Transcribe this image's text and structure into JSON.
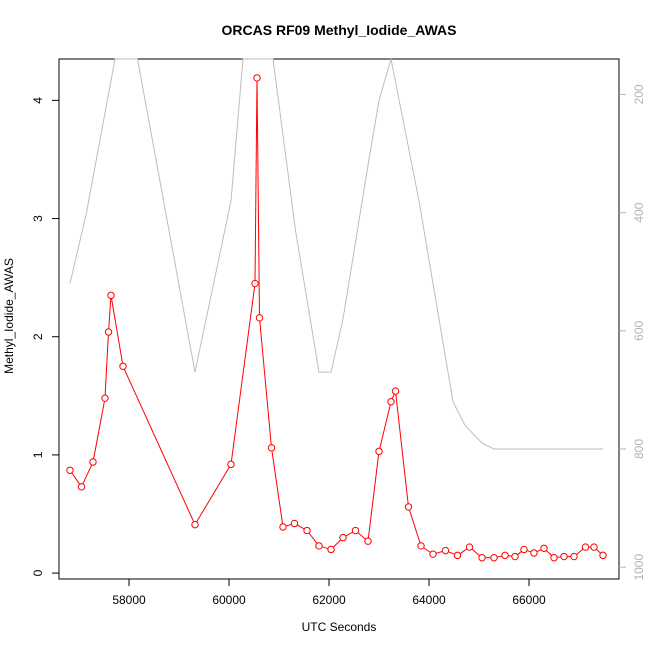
{
  "chart_data": {
    "type": "line",
    "title": "ORCAS RF09 Methyl_Iodide_AWAS",
    "xlabel": "UTC Seconds",
    "ylabel": "Methyl_Iodide_AWAS",
    "xlim": [
      56600,
      67800
    ],
    "ylim": [
      -0.05,
      4.35
    ],
    "x_ticks": [
      58000,
      60000,
      62000,
      64000,
      66000
    ],
    "y_ticks": [
      0,
      1,
      2,
      3,
      4
    ],
    "right_axis": {
      "lim": [
        1020,
        140
      ],
      "ticks": [
        200,
        400,
        600,
        800,
        1000
      ],
      "color": "#b3b3b3"
    },
    "grid": false,
    "series": [
      {
        "color": "#ff0000",
        "style": "line+open-circle",
        "axis": "left",
        "x": [
          56820,
          57050,
          57280,
          57520,
          57590,
          57640,
          57880,
          59320,
          60040,
          60520,
          60560,
          60610,
          60850,
          61080,
          61310,
          61560,
          61800,
          62040,
          62280,
          62530,
          62780,
          63000,
          63240,
          63330,
          63590,
          63840,
          64080,
          64330,
          64570,
          64810,
          65060,
          65300,
          65520,
          65720,
          65900,
          66100,
          66300,
          66500,
          66700,
          66900,
          67130,
          67300,
          67480
        ],
        "y": [
          0.87,
          0.73,
          0.94,
          1.48,
          2.04,
          2.35,
          1.75,
          0.41,
          0.92,
          2.45,
          4.19,
          2.16,
          1.06,
          0.39,
          0.42,
          0.36,
          0.23,
          0.2,
          0.3,
          0.36,
          0.27,
          1.03,
          1.45,
          1.54,
          0.56,
          0.23,
          0.16,
          0.19,
          0.15,
          0.22,
          0.13,
          0.13,
          0.15,
          0.14,
          0.2,
          0.17,
          0.21,
          0.13,
          0.14,
          0.14,
          0.22,
          0.22,
          0.15
        ]
      },
      {
        "color": "#bebebe",
        "style": "line",
        "axis": "right",
        "x": [
          56820,
          57150,
          57720,
          58170,
          59320,
          60040,
          60280,
          60880,
          61330,
          61800,
          62040,
          62280,
          62780,
          63000,
          63240,
          63800,
          64480,
          64720,
          65060,
          65300,
          65800,
          66500,
          67480
        ],
        "y": [
          520,
          400,
          140,
          140,
          670,
          380,
          140,
          140,
          430,
          670,
          670,
          580,
          320,
          210,
          140,
          380,
          720,
          760,
          790,
          800,
          800,
          800,
          800
        ]
      }
    ]
  }
}
